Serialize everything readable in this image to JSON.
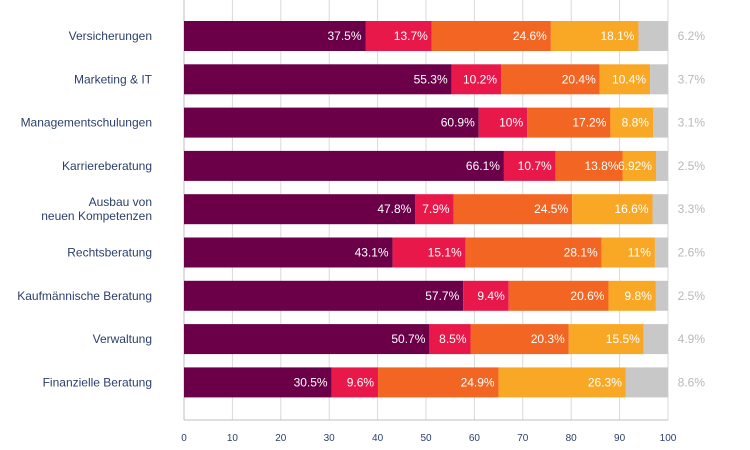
{
  "chart_data": {
    "type": "bar",
    "orientation": "horizontal",
    "stacked": true,
    "title": "",
    "xlabel": "",
    "ylabel": "",
    "xlim": [
      0,
      100
    ],
    "x_ticks": [
      "0",
      "10",
      "20",
      "30",
      "40",
      "50",
      "60",
      "70",
      "80",
      "90",
      "100"
    ],
    "grid": true,
    "legend": "none",
    "categories": [
      "Versicherungen",
      "Marketing & IT",
      "Managementschulungen",
      "Karriereberatung",
      [
        "Ausbau von",
        "neuen Kompetenzen"
      ],
      "Rechtsberatung",
      "Kaufmännische Beratung",
      "Verwaltung",
      "Finanzielle Beratung"
    ],
    "series": [
      {
        "color": "#6b0048",
        "values": [
          37.5,
          55.3,
          60.9,
          66.1,
          47.8,
          43.1,
          57.7,
          50.7,
          30.5
        ],
        "labels": [
          "37.5%",
          "55.3%",
          "60.9%",
          "66.1%",
          "47.8%",
          "43.1%",
          "57.7%",
          "50.7%",
          "30.5%"
        ]
      },
      {
        "color": "#e8194a",
        "values": [
          13.7,
          10.2,
          10,
          10.7,
          7.9,
          15.1,
          9.4,
          8.5,
          9.6
        ],
        "labels": [
          "13.7%",
          "10.2%",
          "10%",
          "10.7%",
          "7.9%",
          "15.1%",
          "9.4%",
          "8.5%",
          "9.6%"
        ]
      },
      {
        "color": "#f26522",
        "values": [
          24.6,
          20.4,
          17.2,
          13.8,
          24.5,
          28.1,
          20.6,
          20.3,
          24.9
        ],
        "labels": [
          "24.6%",
          "20.4%",
          "17.2%",
          "13.8%",
          "24.5%",
          "28.1%",
          "20.6%",
          "20.3%",
          "24.9%"
        ]
      },
      {
        "color": "#f9a826",
        "values": [
          18.1,
          10.4,
          8.8,
          6.92,
          16.6,
          11,
          9.8,
          15.5,
          26.3
        ],
        "labels": [
          "18.1%",
          "10.4%",
          "8.8%",
          "6.92%",
          "16.6%",
          "11%",
          "9.8%",
          "15.5%",
          "26.3%"
        ]
      },
      {
        "color": "#c8c8c8",
        "values": [
          6.2,
          3.7,
          3.1,
          2.5,
          3.3,
          2.6,
          2.5,
          4.9,
          8.6
        ],
        "labels": [
          "6.2%",
          "3.7%",
          "3.1%",
          "2.5%",
          "3.3%",
          "2.6%",
          "2.5%",
          "4.9%",
          "8.6%"
        ]
      }
    ]
  }
}
